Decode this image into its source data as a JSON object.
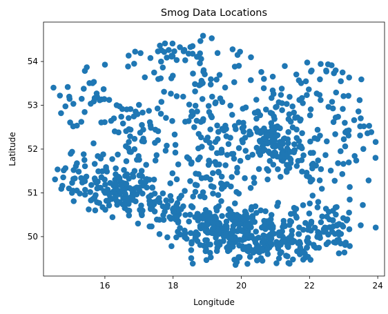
{
  "chart_data": {
    "type": "scatter",
    "title": "Smog Data Locations",
    "xlabel": "Longitude",
    "ylabel": "Latitude",
    "xlim": [
      14.2,
      24.2
    ],
    "ylim": [
      49.1,
      54.9
    ],
    "xticks": [
      16,
      18,
      20,
      22,
      24
    ],
    "yticks": [
      50,
      51,
      52,
      53,
      54
    ],
    "grid": false,
    "colors": {
      "marker": "#1f77b4"
    },
    "series": [
      {
        "clusters": [
          {
            "x": 19.6,
            "y": 50.1,
            "sx": 0.75,
            "sy": 0.32,
            "n": 230
          },
          {
            "x": 21.3,
            "y": 49.95,
            "sx": 0.75,
            "sy": 0.3,
            "n": 140
          },
          {
            "x": 16.4,
            "y": 51.05,
            "sx": 0.85,
            "sy": 0.28,
            "n": 150
          },
          {
            "x": 21.0,
            "y": 52.15,
            "sx": 0.5,
            "sy": 0.4,
            "n": 120
          },
          {
            "x": 18.0,
            "y": 50.6,
            "sx": 0.6,
            "sy": 0.3,
            "n": 60
          },
          {
            "x": 22.8,
            "y": 50.3,
            "sx": 0.45,
            "sy": 0.35,
            "n": 45
          },
          {
            "x": 19.3,
            "y": 51.4,
            "sx": 0.5,
            "sy": 0.4,
            "n": 50
          },
          {
            "x": 17.0,
            "y": 52.3,
            "sx": 0.7,
            "sy": 0.5,
            "n": 60
          },
          {
            "x": 19.4,
            "y": 52.4,
            "sx": 0.7,
            "sy": 0.4,
            "n": 55
          },
          {
            "x": 18.6,
            "y": 53.5,
            "sx": 0.75,
            "sy": 0.5,
            "n": 55
          },
          {
            "x": 15.6,
            "y": 53.1,
            "sx": 0.6,
            "sy": 0.45,
            "n": 35
          },
          {
            "x": 17.4,
            "y": 54.2,
            "sx": 0.9,
            "sy": 0.3,
            "n": 30
          },
          {
            "x": 22.7,
            "y": 53.3,
            "sx": 0.6,
            "sy": 0.6,
            "n": 45
          },
          {
            "x": 22.4,
            "y": 51.5,
            "sx": 0.6,
            "sy": 0.5,
            "n": 40
          },
          {
            "x": 15.0,
            "y": 51.3,
            "sx": 0.3,
            "sy": 0.35,
            "n": 15
          },
          {
            "x": 21.3,
            "y": 53.4,
            "sx": 0.6,
            "sy": 0.5,
            "n": 30
          },
          {
            "x": 23.2,
            "y": 52.3,
            "sx": 0.4,
            "sy": 0.5,
            "n": 15
          }
        ]
      }
    ]
  }
}
